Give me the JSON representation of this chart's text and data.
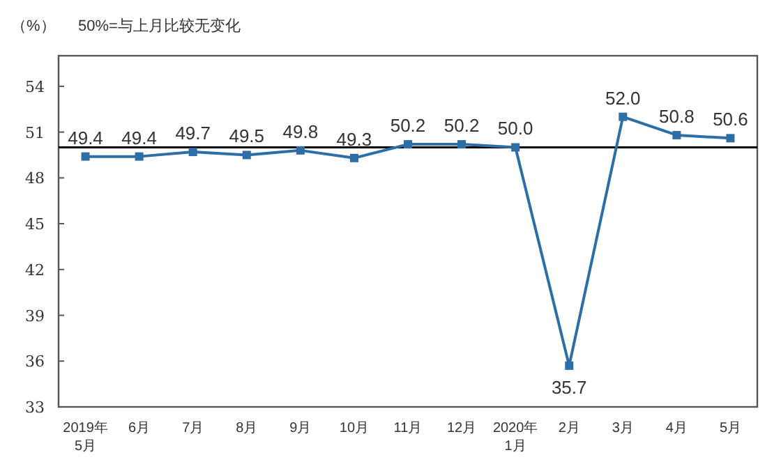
{
  "chart_data": {
    "type": "line",
    "title": "50%=与上月比较无变化",
    "ylabel": "（%）",
    "categories": [
      "2019年\n5月",
      "6月",
      "7月",
      "8月",
      "9月",
      "10月",
      "11月",
      "12月",
      "2020年\n1月",
      "2月",
      "3月",
      "4月",
      "5月"
    ],
    "series": [
      {
        "color": "#2e6ea6",
        "values": [
          49.4,
          49.4,
          49.7,
          49.5,
          49.8,
          49.3,
          50.2,
          50.2,
          50.0,
          35.7,
          52.0,
          50.8,
          50.6
        ],
        "value_labels": [
          "49.4",
          "49.4",
          "49.7",
          "49.5",
          "49.8",
          "49.3",
          "50.2",
          "50.2",
          "50.0",
          "35.7",
          "52.0",
          "50.8",
          "50.6"
        ]
      }
    ],
    "ylim": [
      33,
      56
    ],
    "yticks": [
      33,
      36,
      39,
      42,
      45,
      48,
      51,
      54
    ],
    "ref_lines": [
      {
        "axis": "y",
        "value": 50,
        "color": "#000000"
      }
    ],
    "marker": "square",
    "line_style": "solid"
  }
}
